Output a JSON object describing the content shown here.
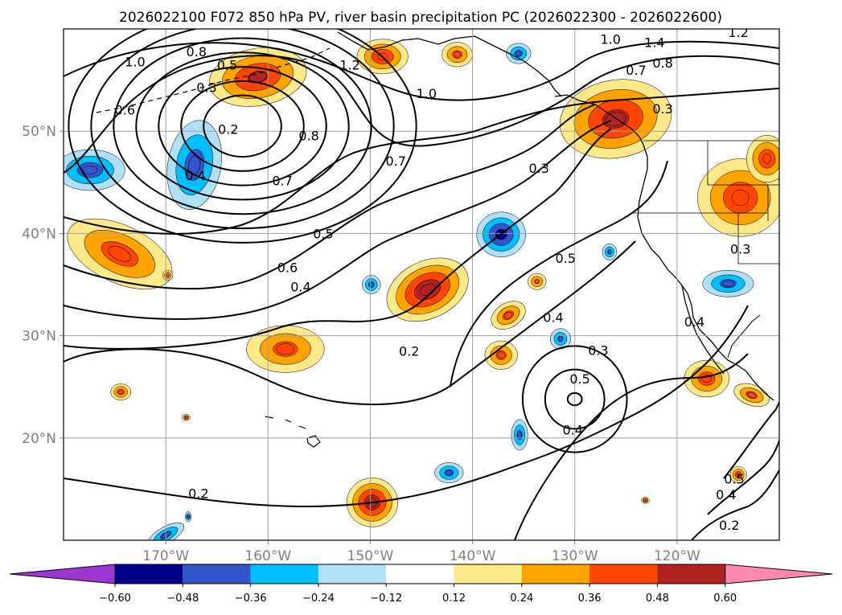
{
  "title": "2026022100 F072 850 hPa PV, river basin precipitation PC (2026022300 - 2026022600)",
  "map": {
    "lon_range": [
      -180,
      -110
    ],
    "lat_range": [
      10,
      60
    ],
    "xticks": [
      {
        "lon": -170,
        "label": "170°W"
      },
      {
        "lon": -160,
        "label": "160°W"
      },
      {
        "lon": -150,
        "label": "150°W"
      },
      {
        "lon": -140,
        "label": "140°W"
      },
      {
        "lon": -130,
        "label": "130°W"
      },
      {
        "lon": -120,
        "label": "120°W"
      }
    ],
    "yticks": [
      {
        "lat": 50,
        "label": "50°N"
      },
      {
        "lat": 40,
        "label": "40°N"
      },
      {
        "lat": 30,
        "label": "30°N"
      },
      {
        "lat": 20,
        "label": "20°N"
      }
    ],
    "gridlines": true
  },
  "contour_labels": [
    {
      "text": "1.0",
      "lon": -173,
      "lat": 56.8
    },
    {
      "text": "0.8",
      "lon": -167,
      "lat": 57.8
    },
    {
      "text": "0.5",
      "lon": -164,
      "lat": 56.5
    },
    {
      "text": "0.3",
      "lon": -166,
      "lat": 54.3
    },
    {
      "text": "0.6",
      "lon": -174,
      "lat": 52.1
    },
    {
      "text": "0.2",
      "lon": -163.9,
      "lat": 50.2
    },
    {
      "text": "0.4",
      "lon": -167.1,
      "lat": 45.7
    },
    {
      "text": "0.8",
      "lon": -156,
      "lat": 49.6
    },
    {
      "text": "0.7",
      "lon": -158.6,
      "lat": 45.2
    },
    {
      "text": "0.7",
      "lon": -147.5,
      "lat": 47.1
    },
    {
      "text": "1.0",
      "lon": -144.5,
      "lat": 53.7
    },
    {
      "text": "1.2",
      "lon": -152,
      "lat": 56.5
    },
    {
      "text": "0.5",
      "lon": -154.6,
      "lat": 40.0
    },
    {
      "text": "0.6",
      "lon": -158.1,
      "lat": 36.7
    },
    {
      "text": "0.4",
      "lon": -156.8,
      "lat": 34.8
    },
    {
      "text": "0.2",
      "lon": -146.2,
      "lat": 28.5
    },
    {
      "text": "0.3",
      "lon": -133.5,
      "lat": 46.4
    },
    {
      "text": "0.5",
      "lon": -130.9,
      "lat": 37.6
    },
    {
      "text": "0.4",
      "lon": -132.1,
      "lat": 31.8
    },
    {
      "text": "0.3",
      "lon": -127.7,
      "lat": 28.6
    },
    {
      "text": "0.5",
      "lon": -129.5,
      "lat": 25.8
    },
    {
      "text": "0.4",
      "lon": -130.2,
      "lat": 20.8
    },
    {
      "text": "0.3",
      "lon": -121.4,
      "lat": 52.2
    },
    {
      "text": "1.0",
      "lon": -126.5,
      "lat": 59.0
    },
    {
      "text": "1.4",
      "lon": -122.2,
      "lat": 58.7
    },
    {
      "text": "0.8",
      "lon": -121.4,
      "lat": 56.7
    },
    {
      "text": "0.7",
      "lon": -124,
      "lat": 56.0
    },
    {
      "text": "1.2",
      "lon": -114,
      "lat": 59.7
    },
    {
      "text": "0.4",
      "lon": -118.3,
      "lat": 31.4
    },
    {
      "text": "0.3",
      "lon": -113.8,
      "lat": 38.5
    },
    {
      "text": "0.5",
      "lon": -114.4,
      "lat": 16.0
    },
    {
      "text": "0.4",
      "lon": -115.2,
      "lat": 14.5
    },
    {
      "text": "0.2",
      "lon": -114.9,
      "lat": 11.5
    },
    {
      "text": "0.2",
      "lon": -166.8,
      "lat": 14.6
    }
  ],
  "colorbar": {
    "colors": [
      "#9c37d2",
      "#00008b",
      "#3255cc",
      "#00bfff",
      "#b0e0f8",
      "#ffffff",
      "#fde98a",
      "#ffa300",
      "#ff4500",
      "#b22222",
      "#ff88b0"
    ],
    "boundaries": [
      -0.6,
      -0.48,
      -0.36,
      -0.24,
      -0.12,
      0.12,
      0.24,
      0.36,
      0.48,
      0.6
    ],
    "tick_labels": [
      "−0.60",
      "−0.48",
      "−0.36",
      "−0.24",
      "−0.12",
      "0.12",
      "0.24",
      "0.36",
      "0.48",
      "0.60"
    ],
    "extend": "both"
  },
  "precip_anomalies": [
    {
      "lon": -174.5,
      "lat": 38.0,
      "rx": 5.5,
      "ry": 2.8,
      "rot": 25,
      "value": 0.42
    },
    {
      "lon": -169.8,
      "lat": 35.9,
      "rx": 0.5,
      "ry": 0.5,
      "rot": 0,
      "value": 0.4
    },
    {
      "lon": -161.0,
      "lat": 55.3,
      "rx": 4.8,
      "ry": 2.8,
      "rot": -10,
      "value": 0.5
    },
    {
      "lon": -167.2,
      "lat": 46.7,
      "rx": 2.6,
      "ry": 4.4,
      "rot": 10,
      "value": -0.42
    },
    {
      "lon": -177.4,
      "lat": 46.2,
      "rx": 3.4,
      "ry": 2.0,
      "rot": 0,
      "value": -0.43
    },
    {
      "lon": -158.3,
      "lat": 28.7,
      "rx": 3.8,
      "ry": 2.3,
      "rot": 0,
      "value": 0.4
    },
    {
      "lon": -144.4,
      "lat": 34.5,
      "rx": 4.2,
      "ry": 2.8,
      "rot": -25,
      "value": 0.58
    },
    {
      "lon": -149.9,
      "lat": 35.0,
      "rx": 0.9,
      "ry": 0.9,
      "rot": 0,
      "value": -0.4
    },
    {
      "lon": -148.8,
      "lat": 57.3,
      "rx": 2.5,
      "ry": 1.7,
      "rot": 0,
      "value": 0.47
    },
    {
      "lon": -141.5,
      "lat": 57.5,
      "rx": 1.5,
      "ry": 1.2,
      "rot": 0,
      "value": 0.4
    },
    {
      "lon": -135.5,
      "lat": 57.6,
      "rx": 1.2,
      "ry": 1.0,
      "rot": 0,
      "value": -0.4
    },
    {
      "lon": -137.2,
      "lat": 39.9,
      "rx": 2.4,
      "ry": 2.2,
      "rot": 0,
      "value": -0.52
    },
    {
      "lon": -136.5,
      "lat": 32.0,
      "rx": 1.8,
      "ry": 1.2,
      "rot": -30,
      "value": 0.4
    },
    {
      "lon": -133.7,
      "lat": 35.3,
      "rx": 0.9,
      "ry": 0.8,
      "rot": 0,
      "value": 0.38
    },
    {
      "lon": -137.2,
      "lat": 28.1,
      "rx": 1.6,
      "ry": 1.4,
      "rot": 0,
      "value": 0.4
    },
    {
      "lon": -131.4,
      "lat": 29.7,
      "rx": 1.0,
      "ry": 1.0,
      "rot": 0,
      "value": -0.38
    },
    {
      "lon": -126.6,
      "lat": 38.2,
      "rx": 0.7,
      "ry": 0.8,
      "rot": 0,
      "value": -0.38
    },
    {
      "lon": -126.0,
      "lat": 51.2,
      "rx": 5.5,
      "ry": 3.8,
      "rot": -10,
      "value": 0.52
    },
    {
      "lon": -113.8,
      "lat": 43.5,
      "rx": 4.2,
      "ry": 3.8,
      "rot": 0,
      "value": 0.45
    },
    {
      "lon": -111.2,
      "lat": 47.3,
      "rx": 2.0,
      "ry": 2.3,
      "rot": 0,
      "value": 0.45
    },
    {
      "lon": -115.0,
      "lat": 35.1,
      "rx": 2.5,
      "ry": 1.3,
      "rot": 0,
      "value": -0.4
    },
    {
      "lon": -117.1,
      "lat": 25.8,
      "rx": 2.2,
      "ry": 1.8,
      "rot": 0,
      "value": 0.43
    },
    {
      "lon": -112.7,
      "lat": 24.2,
      "rx": 1.8,
      "ry": 1.0,
      "rot": 20,
      "value": 0.4
    },
    {
      "lon": -114.0,
      "lat": 16.4,
      "rx": 0.8,
      "ry": 0.8,
      "rot": 0,
      "value": 0.45
    },
    {
      "lon": -174.4,
      "lat": 24.5,
      "rx": 1.0,
      "ry": 0.8,
      "rot": 0,
      "value": 0.42
    },
    {
      "lon": -168.0,
      "lat": 22.0,
      "rx": 0.4,
      "ry": 0.3,
      "rot": 0,
      "value": 0.4
    },
    {
      "lon": -149.8,
      "lat": 13.7,
      "rx": 2.5,
      "ry": 2.4,
      "rot": 0,
      "value": 0.57
    },
    {
      "lon": -142.3,
      "lat": 16.6,
      "rx": 1.4,
      "ry": 1.0,
      "rot": 0,
      "value": -0.4
    },
    {
      "lon": -135.4,
      "lat": 20.3,
      "rx": 0.8,
      "ry": 1.5,
      "rot": 0,
      "value": -0.4
    },
    {
      "lon": -123.1,
      "lat": 13.9,
      "rx": 0.4,
      "ry": 0.3,
      "rot": 0,
      "value": 0.4
    },
    {
      "lon": -167.8,
      "lat": 12.3,
      "rx": 0.3,
      "ry": 0.5,
      "rot": 0,
      "value": -0.38
    },
    {
      "lon": -170.0,
      "lat": 10.5,
      "rx": 2.0,
      "ry": 0.8,
      "rot": -30,
      "value": -0.4
    }
  ],
  "pv_lows": [
    {
      "lon": -162.5,
      "lat": 50.5,
      "values": [
        0.2,
        0.3,
        0.4,
        0.5,
        0.6,
        0.7,
        0.8
      ],
      "rx0": 3.8,
      "ry0": 3.0,
      "drx": 2.2,
      "dry": 1.4
    },
    {
      "lon": -130.0,
      "lat": 23.8,
      "values": [
        0.5,
        0.4,
        0.3
      ],
      "rx0": 0.7,
      "ry0": 0.6,
      "drx": 2.2,
      "dry": 2.3
    }
  ]
}
